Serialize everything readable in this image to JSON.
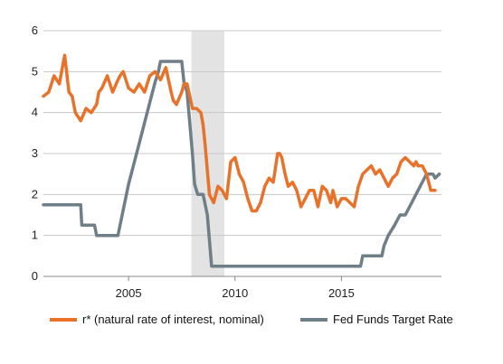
{
  "chart_data": {
    "type": "line",
    "title": "",
    "xlabel": "",
    "ylabel": "",
    "xlim": [
      2001.0,
      2019.7
    ],
    "ylim": [
      0,
      6
    ],
    "yticks": [
      0,
      1,
      2,
      3,
      4,
      5,
      6
    ],
    "xticks": [
      2005,
      2010,
      2015
    ],
    "ytick_labels": [
      "0",
      "1",
      "2",
      "3",
      "4",
      "5",
      "6"
    ],
    "xtick_labels": [
      "2005",
      "2010",
      "2015"
    ],
    "grid": "horizontal",
    "legend_position": "bottom",
    "recession_shading": [
      2007.95,
      2009.5
    ],
    "series": [
      {
        "name": "r* (natural rate of interest, nominal)",
        "color": "#e8722a",
        "x": [
          2001.0,
          2001.25,
          2001.5,
          2001.75,
          2002.0,
          2002.2,
          2002.35,
          2002.5,
          2002.75,
          2003.0,
          2003.25,
          2003.5,
          2003.6,
          2003.75,
          2004.0,
          2004.25,
          2004.5,
          2004.6,
          2004.75,
          2005.0,
          2005.25,
          2005.5,
          2005.75,
          2006.0,
          2006.25,
          2006.5,
          2006.75,
          2007.0,
          2007.1,
          2007.25,
          2007.5,
          2007.6,
          2007.75,
          2008.0,
          2008.2,
          2008.4,
          2008.5,
          2008.6,
          2008.8,
          2009.0,
          2009.2,
          2009.4,
          2009.6,
          2009.8,
          2010.0,
          2010.2,
          2010.4,
          2010.6,
          2010.8,
          2011.0,
          2011.2,
          2011.4,
          2011.6,
          2011.8,
          2012.0,
          2012.1,
          2012.2,
          2012.35,
          2012.5,
          2012.7,
          2012.9,
          2013.1,
          2013.3,
          2013.5,
          2013.7,
          2013.9,
          2014.1,
          2014.3,
          2014.5,
          2014.6,
          2014.8,
          2015.0,
          2015.2,
          2015.4,
          2015.6,
          2015.8,
          2016.0,
          2016.2,
          2016.4,
          2016.5,
          2016.6,
          2016.8,
          2017.0,
          2017.2,
          2017.4,
          2017.6,
          2017.8,
          2018.0,
          2018.2,
          2018.4,
          2018.5,
          2018.6,
          2018.8,
          2019.0,
          2019.2,
          2019.4
        ],
        "values": [
          4.4,
          4.5,
          4.9,
          4.7,
          5.4,
          4.5,
          4.4,
          4.0,
          3.8,
          4.1,
          4.0,
          4.2,
          4.5,
          4.6,
          4.9,
          4.5,
          4.8,
          4.9,
          5.0,
          4.6,
          4.5,
          4.7,
          4.5,
          4.9,
          5.0,
          4.8,
          5.1,
          4.5,
          4.3,
          4.2,
          4.5,
          4.7,
          4.7,
          4.1,
          4.1,
          4.0,
          3.7,
          3.2,
          2.0,
          1.8,
          2.2,
          2.1,
          1.9,
          2.8,
          2.9,
          2.5,
          2.3,
          1.9,
          1.6,
          1.6,
          1.8,
          2.2,
          2.4,
          2.3,
          3.0,
          3.0,
          2.9,
          2.5,
          2.2,
          2.3,
          2.1,
          1.7,
          1.9,
          2.1,
          2.1,
          1.7,
          2.2,
          2.1,
          1.8,
          2.1,
          1.7,
          1.9,
          1.9,
          1.8,
          1.7,
          2.2,
          2.5,
          2.6,
          2.7,
          2.6,
          2.5,
          2.6,
          2.4,
          2.2,
          2.4,
          2.5,
          2.8,
          2.9,
          2.8,
          2.7,
          2.8,
          2.7,
          2.7,
          2.5,
          2.1,
          2.1
        ]
      },
      {
        "name": "Fed Funds Target Rate",
        "color": "#6f7f88",
        "x": [
          2001.0,
          2002.75,
          2002.8,
          2003.4,
          2003.5,
          2004.5,
          2004.6,
          2005.0,
          2005.5,
          2006.0,
          2006.25,
          2006.4,
          2006.5,
          2007.0,
          2007.5,
          2007.6,
          2007.75,
          2008.0,
          2008.1,
          2008.25,
          2008.4,
          2008.5,
          2008.7,
          2008.9,
          2009.0,
          2015.9,
          2016.0,
          2016.9,
          2017.0,
          2017.2,
          2017.5,
          2017.75,
          2018.0,
          2018.25,
          2018.5,
          2018.75,
          2019.0,
          2019.3,
          2019.4,
          2019.6
        ],
        "values": [
          1.75,
          1.75,
          1.25,
          1.25,
          1.0,
          1.0,
          1.25,
          2.25,
          3.25,
          4.25,
          4.75,
          5.0,
          5.25,
          5.25,
          5.25,
          4.75,
          4.5,
          3.0,
          2.25,
          2.0,
          2.0,
          2.0,
          1.5,
          0.25,
          0.25,
          0.25,
          0.5,
          0.5,
          0.75,
          1.0,
          1.25,
          1.5,
          1.5,
          1.75,
          2.0,
          2.25,
          2.5,
          2.5,
          2.4,
          2.5
        ]
      }
    ]
  }
}
